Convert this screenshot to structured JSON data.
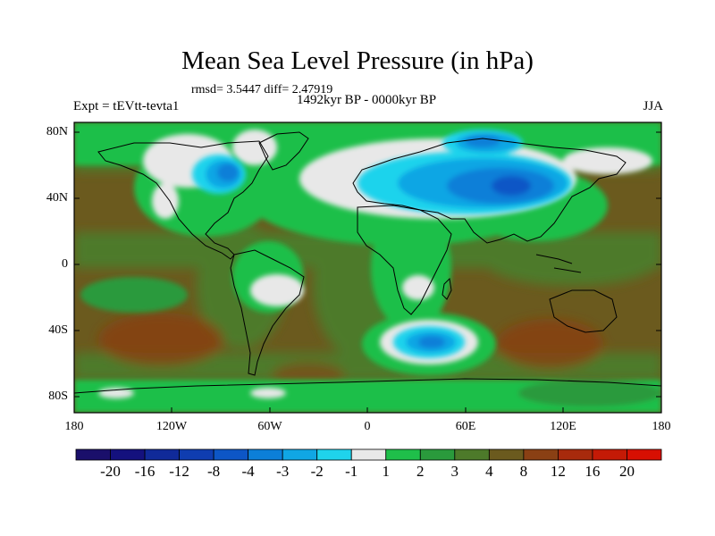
{
  "title": "Mean Sea Level Pressure (in hPa)",
  "rmsd_text": "rmsd= 3.5447 diff= 2.47919",
  "experiment_label": "Expt = tEVtt-tevta1",
  "period_label": "1492kyr BP - 0000kyr BP",
  "season_label": "JJA",
  "lat_ticks": [
    "80N",
    "40N",
    "0",
    "40S",
    "80S"
  ],
  "lon_ticks": [
    "180",
    "120W",
    "60W",
    "0",
    "60E",
    "120E",
    "180"
  ],
  "colorbar": {
    "labels": [
      "-20",
      "-16",
      "-12",
      "-8",
      "-4",
      "-3",
      "-2",
      "-1",
      "1",
      "2",
      "3",
      "4",
      "8",
      "12",
      "16",
      "20"
    ],
    "colors": [
      "#1a0f6b",
      "#14117e",
      "#102a99",
      "#0f3db0",
      "#0d56c6",
      "#0c7fd8",
      "#10a6e4",
      "#1fd3ec",
      "#e8e8e8",
      "#1fbf4a",
      "#2a9a3c",
      "#4d7a2a",
      "#6b5a1e",
      "#8a4014",
      "#a82a0c",
      "#c41a06",
      "#d70f02"
    ]
  }
}
